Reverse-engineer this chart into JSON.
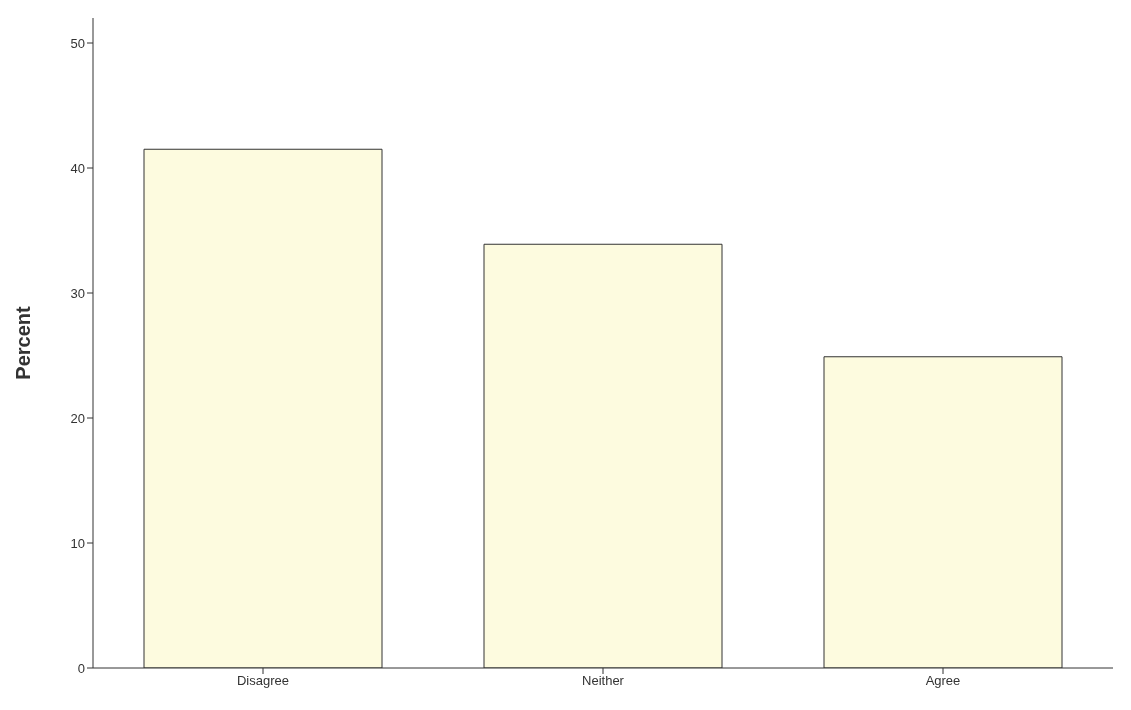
{
  "chart_data": {
    "type": "bar",
    "ylabel": "Percent",
    "categories": [
      "Disagree",
      "Neither",
      "Agree"
    ],
    "values": [
      41.5,
      33.9,
      24.9
    ],
    "color": "#fdfbdf",
    "ylim": [
      0,
      52
    ],
    "yticks": [
      0,
      10,
      20,
      30,
      40,
      50
    ],
    "grid": false
  }
}
